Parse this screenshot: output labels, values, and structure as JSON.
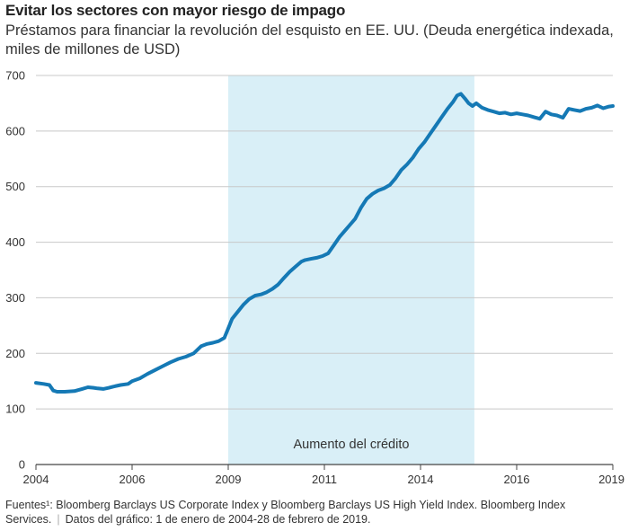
{
  "title": "Evitar los sectores con mayor riesgo de impago",
  "subtitle": "Préstamos para financiar la revolución del esquisto en EE. UU. (Deuda energética indexada, miles de millones de USD)",
  "footer": {
    "sources": "Fuentes¹: Bloomberg Barclays US Corporate Index y Bloomberg Barclays US High Yield Index. Bloomberg Index Services.",
    "dates": "Datos del gráfico: 1 de enero de 2004-28 de febrero de 2019."
  },
  "chart_data": {
    "type": "line",
    "title": "Evitar los sectores con mayor riesgo de impago",
    "subtitle": "Préstamos para financiar la revolución del esquisto en EE. UU. (Deuda energética indexada, miles de millones de USD)",
    "xlabel": "",
    "ylabel": "",
    "xlim": [
      2004,
      2019
    ],
    "ylim": [
      0,
      700
    ],
    "x_ticks": [
      {
        "value": 2004,
        "label": "2004"
      },
      {
        "value": 2006.5,
        "label": "2006"
      },
      {
        "value": 2009,
        "label": "2009"
      },
      {
        "value": 2011.5,
        "label": "2011"
      },
      {
        "value": 2014,
        "label": "2014"
      },
      {
        "value": 2016.5,
        "label": "2016"
      },
      {
        "value": 2019,
        "label": "2019"
      }
    ],
    "y_ticks": [
      0,
      100,
      200,
      300,
      400,
      500,
      600,
      700
    ],
    "grid": true,
    "line_color": "#1579b5",
    "shade_color": "#d9eff7",
    "shaded_region": {
      "x_start": 2009,
      "x_end": 2015.4,
      "label": "Aumento del crédito"
    },
    "series": [
      {
        "x": [
          2004.0,
          2004.2,
          2004.35,
          2004.45,
          2004.55,
          2004.75,
          2005.0,
          2005.2,
          2005.35,
          2005.5,
          2005.6,
          2005.75,
          2005.9,
          2006.0,
          2006.2,
          2006.4,
          2006.5,
          2006.7,
          2006.9,
          2007.1,
          2007.3,
          2007.5,
          2007.7,
          2007.9,
          2008.1,
          2008.3,
          2008.45,
          2008.6,
          2008.75,
          2008.9,
          2009.0,
          2009.1,
          2009.25,
          2009.4,
          2009.55,
          2009.7,
          2009.85,
          2010.0,
          2010.15,
          2010.3,
          2010.45,
          2010.6,
          2010.75,
          2010.9,
          2011.0,
          2011.15,
          2011.3,
          2011.45,
          2011.6,
          2011.75,
          2011.9,
          2012.0,
          2012.15,
          2012.3,
          2012.45,
          2012.6,
          2012.75,
          2012.9,
          2013.05,
          2013.2,
          2013.35,
          2013.5,
          2013.65,
          2013.8,
          2013.95,
          2014.1,
          2014.25,
          2014.4,
          2014.55,
          2014.7,
          2014.85,
          2014.95,
          2015.05,
          2015.15,
          2015.25,
          2015.35,
          2015.45,
          2015.6,
          2015.75,
          2015.9,
          2016.05,
          2016.2,
          2016.35,
          2016.5,
          2016.65,
          2016.8,
          2016.95,
          2017.1,
          2017.25,
          2017.4,
          2017.55,
          2017.7,
          2017.85,
          2018.0,
          2018.15,
          2018.3,
          2018.45,
          2018.6,
          2018.75,
          2018.9,
          2019.0
        ],
        "values": [
          147,
          145,
          143,
          133,
          131,
          131,
          132,
          136,
          139,
          138,
          137,
          136,
          138,
          140,
          143,
          145,
          150,
          155,
          163,
          170,
          177,
          184,
          190,
          194,
          200,
          213,
          217,
          219,
          222,
          228,
          245,
          262,
          275,
          288,
          298,
          304,
          306,
          310,
          316,
          324,
          336,
          347,
          356,
          365,
          368,
          370,
          372,
          375,
          380,
          395,
          410,
          418,
          430,
          442,
          462,
          478,
          487,
          493,
          497,
          503,
          515,
          530,
          540,
          552,
          568,
          580,
          595,
          610,
          625,
          640,
          653,
          664,
          667,
          659,
          650,
          645,
          650,
          642,
          638,
          635,
          632,
          633,
          630,
          632,
          630,
          628,
          625,
          622,
          635,
          630,
          628,
          624,
          640,
          638,
          636,
          640,
          642,
          646,
          641,
          644,
          645
        ]
      }
    ]
  }
}
